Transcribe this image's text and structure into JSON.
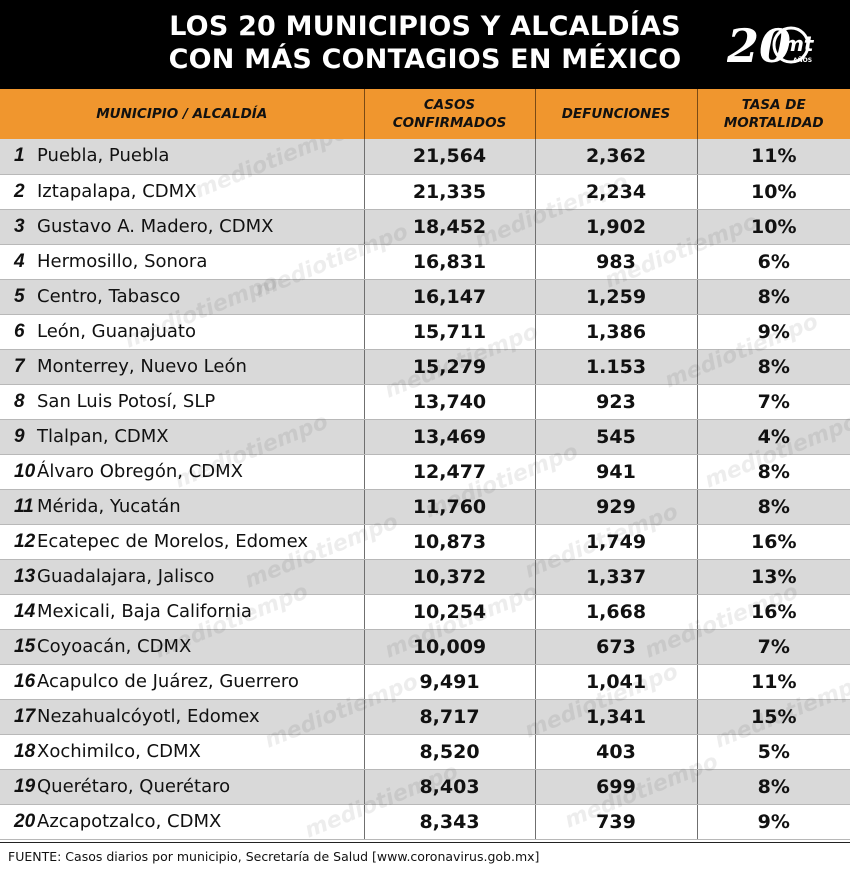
{
  "header": {
    "title_line1": "LOS 20 MUNICIPIOS Y ALCALDÍAS",
    "title_line2": "CON MÁS CONTAGIOS EN MÉXICO",
    "logo_number": "20",
    "logo_mark": "mt",
    "logo_sub": "AÑOS"
  },
  "table": {
    "columns": [
      "MUNICIPIO / ALCALDÍA",
      "CASOS CONFIRMADOS",
      "DEFUNCIONES",
      "TASA DE MORTALIDAD"
    ],
    "columns_lines": {
      "c2_l1": "CASOS",
      "c2_l2": "CONFIRMADOS",
      "c4_l1": "TASA DE",
      "c4_l2": "MORTALIDAD"
    },
    "rows": [
      {
        "rank": "1",
        "name": "Puebla, Puebla",
        "cases": "21,564",
        "deaths": "2,362",
        "rate": "11%"
      },
      {
        "rank": "2",
        "name": "Iztapalapa, CDMX",
        "cases": "21,335",
        "deaths": "2,234",
        "rate": "10%"
      },
      {
        "rank": "3",
        "name": "Gustavo A. Madero, CDMX",
        "cases": "18,452",
        "deaths": "1,902",
        "rate": "10%"
      },
      {
        "rank": "4",
        "name": "Hermosillo, Sonora",
        "cases": "16,831",
        "deaths": "983",
        "rate": "6%"
      },
      {
        "rank": "5",
        "name": "Centro, Tabasco",
        "cases": "16,147",
        "deaths": "1,259",
        "rate": "8%"
      },
      {
        "rank": "6",
        "name": "León, Guanajuato",
        "cases": "15,711",
        "deaths": "1,386",
        "rate": "9%"
      },
      {
        "rank": "7",
        "name": "Monterrey, Nuevo León",
        "cases": "15,279",
        "deaths": "1.153",
        "rate": "8%"
      },
      {
        "rank": "8",
        "name": "San Luis Potosí, SLP",
        "cases": "13,740",
        "deaths": "923",
        "rate": "7%"
      },
      {
        "rank": "9",
        "name": "Tlalpan, CDMX",
        "cases": "13,469",
        "deaths": "545",
        "rate": "4%"
      },
      {
        "rank": "10",
        "name": "Álvaro Obregón, CDMX",
        "cases": "12,477",
        "deaths": "941",
        "rate": "8%"
      },
      {
        "rank": "11",
        "name": "Mérida, Yucatán",
        "cases": "11,760",
        "deaths": "929",
        "rate": "8%"
      },
      {
        "rank": "12",
        "name": "Ecatepec de Morelos, Edomex",
        "cases": "10,873",
        "deaths": "1,749",
        "rate": "16%"
      },
      {
        "rank": "13",
        "name": "Guadalajara, Jalisco",
        "cases": "10,372",
        "deaths": "1,337",
        "rate": "13%"
      },
      {
        "rank": "14",
        "name": "Mexicali, Baja California",
        "cases": "10,254",
        "deaths": "1,668",
        "rate": "16%"
      },
      {
        "rank": "15",
        "name": "Coyoacán, CDMX",
        "cases": "10,009",
        "deaths": "673",
        "rate": "7%"
      },
      {
        "rank": "16",
        "name": "Acapulco de Juárez, Guerrero",
        "cases": "9,491",
        "deaths": "1,041",
        "rate": "11%"
      },
      {
        "rank": "17",
        "name": "Nezahualcóyotl, Edomex",
        "cases": "8,717",
        "deaths": "1,341",
        "rate": "15%"
      },
      {
        "rank": "18",
        "name": "Xochimilco, CDMX",
        "cases": "8,520",
        "deaths": "403",
        "rate": "5%"
      },
      {
        "rank": "19",
        "name": "Querétaro, Querétaro",
        "cases": "8,403",
        "deaths": "699",
        "rate": "8%"
      },
      {
        "rank": "20",
        "name": "Azcapotzalco, CDMX",
        "cases": "8,343",
        "deaths": "739",
        "rate": "9%"
      }
    ]
  },
  "watermark_text": "mediotiempo",
  "footer": {
    "source": "FUENTE: Casos diarios por municipio, Secretaría de Salud [www.coronavirus.gob.mx]"
  },
  "colors": {
    "header_bg": "#000000",
    "column_header_bg": "#f0962e",
    "row_alt_bg": "#d9d9d9"
  }
}
